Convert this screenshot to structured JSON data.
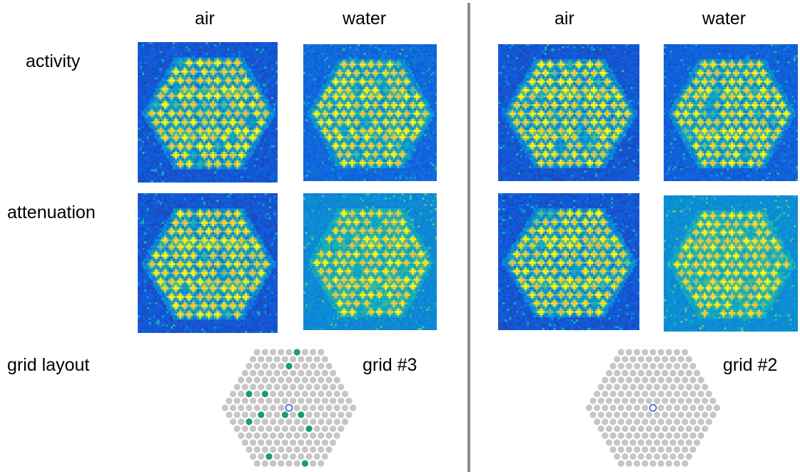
{
  "columns": {
    "left": {
      "air": "air",
      "water": "water"
    },
    "right": {
      "air": "air",
      "water": "water"
    }
  },
  "rows": {
    "activity": "activity",
    "attenuation": "attenuation",
    "grid_layout": "grid layout"
  },
  "grids": {
    "left": {
      "label": "grid #3"
    },
    "right": {
      "label": "grid #2"
    }
  },
  "colors": {
    "background": "#2e35a0",
    "hot": "#f2e21c",
    "grid_dot": "#c6c6c6",
    "grid_highlight": "#1b9d6a",
    "grid_center": "#1f3fc8",
    "divider": "#8c8c8c"
  }
}
